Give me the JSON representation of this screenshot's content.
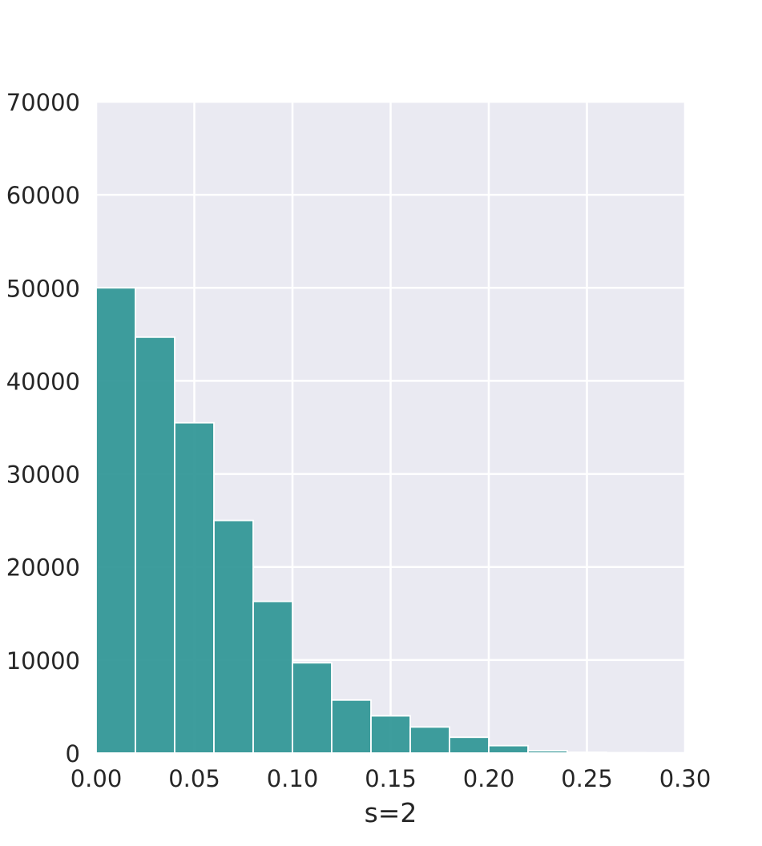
{
  "chart_data": {
    "type": "bar",
    "title": "",
    "xlabel": "s=2",
    "ylabel": "",
    "xlim": [
      0.0,
      0.3
    ],
    "ylim": [
      0,
      70000
    ],
    "x_ticks": [
      "0.00",
      "0.05",
      "0.10",
      "0.15",
      "0.20",
      "0.25",
      "0.30"
    ],
    "y_ticks": [
      "0",
      "10000",
      "20000",
      "30000",
      "40000",
      "50000",
      "60000",
      "70000"
    ],
    "bin_edges": [
      0.0,
      0.02,
      0.04,
      0.06,
      0.08,
      0.1,
      0.12,
      0.14,
      0.16,
      0.18,
      0.2,
      0.22,
      0.24,
      0.26,
      0.28,
      0.3
    ],
    "values": [
      50000,
      44700,
      35500,
      25000,
      16300,
      9700,
      5700,
      4000,
      2800,
      1700,
      800,
      250,
      80,
      30,
      10
    ],
    "grid": true,
    "legend": "none",
    "colors": {
      "bar": "#2e9595",
      "bar_edge": "#ffffff",
      "plot_background": "#eaeaf2",
      "grid": "#ffffff",
      "text": "#262626"
    }
  }
}
